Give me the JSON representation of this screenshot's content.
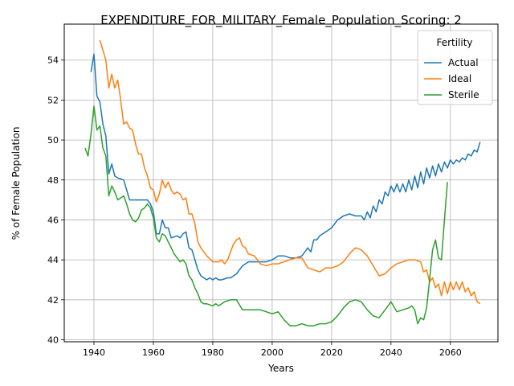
{
  "chart_data": {
    "type": "line",
    "title": "EXPENDITURE_FOR_MILITARY_Female_Population_Scoring: 2",
    "xlabel": "Years",
    "ylabel": "% of Female Population",
    "xlim": [
      1930,
      2076
    ],
    "ylim": [
      39.9,
      55.8
    ],
    "xticks": [
      1940,
      1960,
      1980,
      2000,
      2020,
      2040,
      2060
    ],
    "yticks": [
      40,
      42,
      44,
      46,
      48,
      50,
      52,
      54
    ],
    "grid": true,
    "legend": {
      "title": "Fertility",
      "placement": "top-right"
    },
    "series": [
      {
        "name": "Actual",
        "color": "#1f77b4",
        "x": [
          1939,
          1940,
          1941,
          1942,
          1943,
          1944,
          1945,
          1946,
          1947,
          1948,
          1950,
          1951,
          1952,
          1954,
          1956,
          1958,
          1959,
          1960,
          1961,
          1962,
          1963,
          1964,
          1965,
          1966,
          1968,
          1969,
          1970,
          1971,
          1972,
          1973,
          1974,
          1975,
          1976,
          1978,
          1979,
          1980,
          1981,
          1982,
          1983,
          1985,
          1986,
          1988,
          1990,
          1992,
          1995,
          1998,
          2000,
          2002,
          2004,
          2006,
          2008,
          2010,
          2012,
          2013,
          2014,
          2015,
          2016,
          2018,
          2020,
          2022,
          2024,
          2026,
          2028,
          2030,
          2031,
          2032,
          2033,
          2034,
          2035,
          2036,
          2037,
          2038,
          2039,
          2040,
          2041,
          2042,
          2043,
          2044,
          2045,
          2046,
          2047,
          2048,
          2049,
          2050,
          2051,
          2052,
          2053,
          2054,
          2055,
          2056,
          2057,
          2058,
          2059,
          2060,
          2061,
          2062,
          2063,
          2064,
          2065,
          2066,
          2067,
          2068,
          2069,
          2070
        ],
        "y": [
          53.4,
          54.3,
          52.2,
          51.9,
          50.8,
          50.2,
          48.3,
          48.8,
          48.2,
          48.1,
          48.0,
          47.5,
          47.0,
          47.0,
          47.0,
          47.0,
          46.8,
          46.4,
          45.3,
          45.3,
          46.0,
          45.6,
          45.6,
          45.1,
          45.2,
          45.1,
          45.3,
          45.4,
          44.6,
          44.5,
          44.0,
          43.5,
          43.2,
          43.0,
          43.1,
          43.0,
          43.1,
          43.0,
          43.0,
          43.1,
          43.1,
          43.3,
          43.7,
          43.9,
          43.9,
          43.9,
          44.0,
          44.2,
          44.2,
          44.1,
          44.1,
          44.2,
          44.6,
          44.4,
          45.0,
          45.0,
          45.2,
          45.4,
          45.6,
          46.0,
          46.2,
          46.3,
          46.2,
          46.2,
          46.0,
          46.4,
          46.1,
          46.7,
          46.4,
          47.0,
          46.8,
          47.4,
          47.2,
          47.7,
          47.4,
          47.8,
          47.4,
          47.8,
          47.4,
          48.0,
          47.5,
          48.2,
          47.6,
          48.4,
          47.8,
          48.6,
          48.1,
          48.7,
          48.2,
          48.8,
          48.4,
          48.9,
          48.6,
          49.0,
          48.8,
          49.0,
          48.9,
          49.1,
          49.0,
          49.3,
          49.2,
          49.5,
          49.4,
          49.9
        ],
        "draw_end": 2070
      },
      {
        "name": "Ideal",
        "color": "#ff7f0e",
        "x": [
          1942,
          1944,
          1945,
          1946,
          1947,
          1948,
          1949,
          1950,
          1951,
          1952,
          1953,
          1954,
          1955,
          1956,
          1957,
          1958,
          1959,
          1960,
          1961,
          1962,
          1963,
          1964,
          1965,
          1966,
          1967,
          1968,
          1969,
          1970,
          1971,
          1972,
          1973,
          1974,
          1975,
          1976,
          1978,
          1980,
          1981,
          1982,
          1983,
          1984,
          1985,
          1986,
          1987,
          1988,
          1989,
          1990,
          1991,
          1992,
          1994,
          1996,
          1998,
          2000,
          2002,
          2004,
          2006,
          2008,
          2010,
          2012,
          2014,
          2016,
          2018,
          2020,
          2022,
          2024,
          2026,
          2028,
          2030,
          2032,
          2034,
          2036,
          2038,
          2040,
          2042,
          2044,
          2046,
          2048,
          2050,
          2051,
          2052,
          2053,
          2054,
          2055,
          2056,
          2057,
          2058,
          2059,
          2060,
          2061,
          2062,
          2063,
          2064,
          2065,
          2066,
          2067,
          2068,
          2069,
          2070
        ],
        "y": [
          55.0,
          54.0,
          52.6,
          53.3,
          52.6,
          53.0,
          52.0,
          50.8,
          50.9,
          50.6,
          50.5,
          49.8,
          49.3,
          49.3,
          48.6,
          48.2,
          47.6,
          47.5,
          46.9,
          47.3,
          48.0,
          47.6,
          47.9,
          47.5,
          47.3,
          47.4,
          47.3,
          47.0,
          47.1,
          46.3,
          46.3,
          45.8,
          44.9,
          44.6,
          44.2,
          43.9,
          43.9,
          43.9,
          44.0,
          43.8,
          44.0,
          44.4,
          44.8,
          45.0,
          45.1,
          44.7,
          44.6,
          44.3,
          44.2,
          43.8,
          43.7,
          43.8,
          43.8,
          43.9,
          44.0,
          44.1,
          44.1,
          43.6,
          43.5,
          43.4,
          43.6,
          43.6,
          43.7,
          43.9,
          44.3,
          44.6,
          44.5,
          44.2,
          43.7,
          43.2,
          43.3,
          43.6,
          43.8,
          43.9,
          44.0,
          44.0,
          43.9,
          43.4,
          43.5,
          42.9,
          43.1,
          42.6,
          42.8,
          42.2,
          42.9,
          42.3,
          42.9,
          42.5,
          42.9,
          42.5,
          42.9,
          42.4,
          42.6,
          42.2,
          42.4,
          41.9,
          41.8
        ],
        "draw_end": 2070
      },
      {
        "name": "Sterile",
        "color": "#2ca02c",
        "x": [
          1937,
          1938,
          1939,
          1940,
          1941,
          1942,
          1943,
          1944,
          1945,
          1946,
          1947,
          1948,
          1949,
          1950,
          1951,
          1952,
          1953,
          1954,
          1955,
          1956,
          1957,
          1958,
          1959,
          1960,
          1961,
          1962,
          1963,
          1964,
          1965,
          1966,
          1967,
          1968,
          1969,
          1970,
          1971,
          1972,
          1973,
          1974,
          1975,
          1976,
          1977,
          1978,
          1980,
          1981,
          1982,
          1984,
          1986,
          1988,
          1990,
          1992,
          1994,
          1996,
          1998,
          2000,
          2002,
          2004,
          2006,
          2008,
          2010,
          2012,
          2014,
          2016,
          2018,
          2020,
          2022,
          2024,
          2026,
          2028,
          2030,
          2032,
          2034,
          2036,
          2038,
          2040,
          2042,
          2044,
          2046,
          2047,
          2048,
          2049,
          2050,
          2051,
          2052,
          2053,
          2054,
          2055,
          2056,
          2057,
          2058,
          2059
        ],
        "y": [
          49.6,
          49.2,
          50.3,
          51.7,
          50.5,
          50.7,
          49.6,
          49.2,
          47.2,
          47.7,
          47.4,
          47.0,
          47.1,
          47.2,
          46.8,
          46.3,
          46.0,
          45.9,
          46.1,
          46.5,
          46.6,
          46.8,
          46.6,
          46.1,
          45.1,
          44.9,
          45.3,
          45.2,
          44.9,
          44.6,
          44.3,
          44.1,
          43.9,
          44.0,
          43.8,
          43.2,
          43.0,
          42.6,
          42.3,
          41.9,
          41.8,
          41.8,
          41.7,
          41.8,
          41.7,
          41.9,
          42.0,
          42.0,
          41.5,
          41.5,
          41.5,
          41.5,
          41.4,
          41.3,
          41.4,
          41.0,
          40.7,
          40.7,
          40.8,
          40.7,
          40.7,
          40.8,
          40.8,
          40.9,
          41.2,
          41.6,
          41.9,
          42.0,
          41.9,
          41.5,
          41.2,
          41.1,
          41.5,
          41.9,
          41.4,
          41.5,
          41.6,
          41.7,
          41.5,
          40.8,
          41.1,
          41.0,
          41.6,
          43.0,
          44.5,
          45.0,
          44.1,
          44.0,
          46.0,
          47.9
        ],
        "draw_end": 2059
      }
    ]
  }
}
